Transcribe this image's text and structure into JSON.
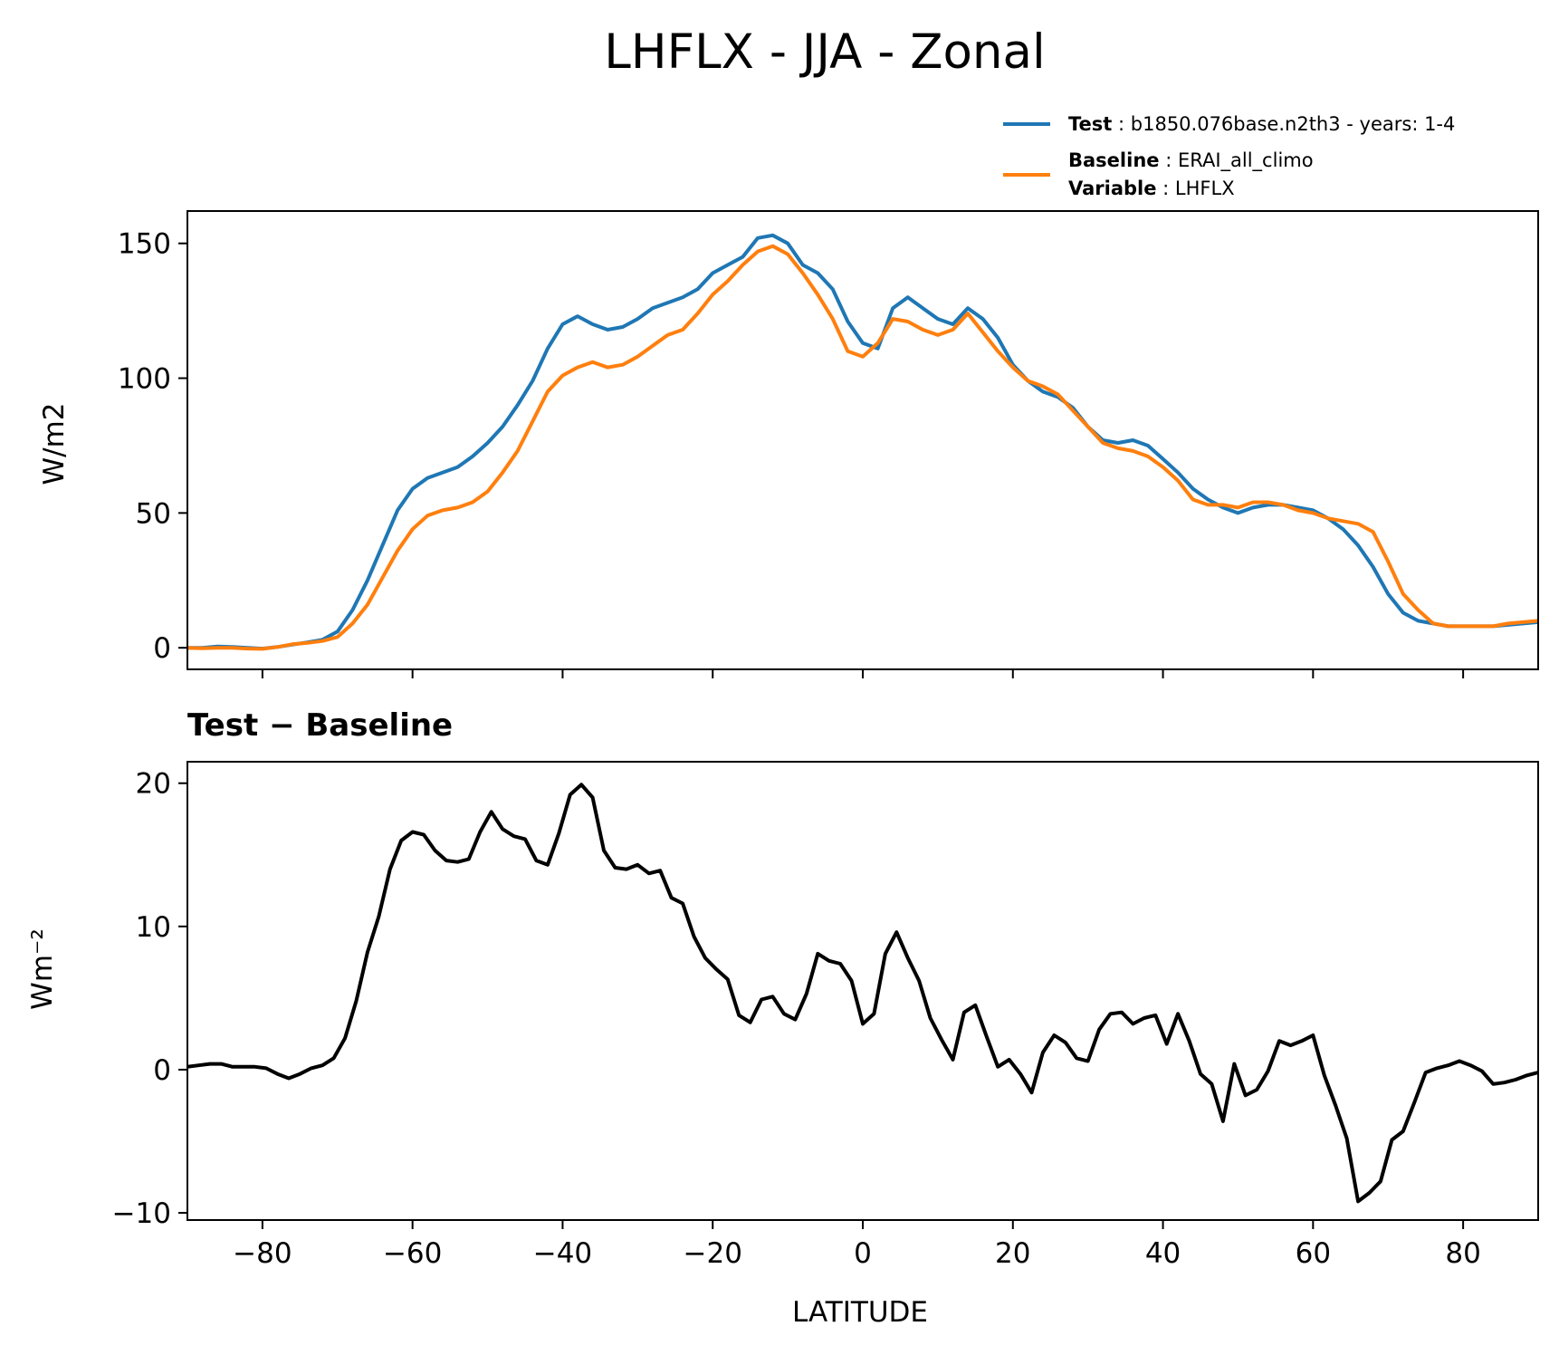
{
  "title": "LHFLX - JJA - Zonal",
  "legend": {
    "entries": [
      {
        "key": "Test",
        "sep": " : ",
        "value": "b1850.076base.n2th3 - years: 1-4",
        "color": "#1f77b4"
      },
      {
        "key": "Baseline",
        "sep": " : ",
        "value": "ERAI_all_climo",
        "color": "#ff7f0e"
      },
      {
        "key": "Variable",
        "sep": " : ",
        "value": "LHFLX"
      }
    ]
  },
  "chart_data": [
    {
      "type": "line",
      "ylabel": "W/m2",
      "xlim": [
        -90,
        90
      ],
      "ylim": [
        -8,
        162
      ],
      "yticks": [
        0,
        50,
        100,
        150
      ],
      "x": [
        -90,
        -88,
        -86,
        -84,
        -82,
        -80,
        -78,
        -76,
        -74,
        -72,
        -70,
        -68,
        -66,
        -64,
        -62,
        -60,
        -58,
        -56,
        -54,
        -52,
        -50,
        -48,
        -46,
        -44,
        -42,
        -40,
        -38,
        -36,
        -34,
        -32,
        -30,
        -28,
        -26,
        -24,
        -22,
        -20,
        -18,
        -16,
        -14,
        -12,
        -10,
        -8,
        -6,
        -4,
        -2,
        0,
        2,
        4,
        6,
        8,
        10,
        12,
        14,
        16,
        18,
        20,
        22,
        24,
        26,
        28,
        30,
        32,
        34,
        36,
        38,
        40,
        42,
        44,
        46,
        48,
        50,
        52,
        54,
        56,
        58,
        60,
        62,
        64,
        66,
        68,
        70,
        72,
        74,
        76,
        78,
        80,
        82,
        84,
        86,
        88,
        90
      ],
      "series": [
        {
          "name": "Test",
          "color": "#1f77b4",
          "values": [
            0,
            0,
            0.5,
            0.3,
            0,
            -0.3,
            0.3,
            1.2,
            2,
            3,
            6,
            14,
            25,
            38,
            51,
            59,
            63,
            65,
            67,
            71,
            76,
            82,
            90,
            99,
            111,
            120,
            123,
            120,
            118,
            119,
            122,
            126,
            128,
            130,
            133,
            139,
            142,
            145,
            152,
            153,
            150,
            142,
            139,
            133,
            121,
            113,
            111,
            126,
            130,
            126,
            122,
            120,
            126,
            122,
            115,
            105,
            99,
            95,
            93,
            89,
            82,
            77,
            76,
            77,
            75,
            70,
            65,
            59,
            55,
            52,
            50,
            52,
            53,
            53,
            52,
            51,
            48,
            44,
            38,
            30,
            20,
            13,
            10,
            9,
            8,
            8,
            8,
            8,
            8.5,
            9,
            9.5
          ]
        },
        {
          "name": "Baseline",
          "color": "#ff7f0e",
          "values": [
            0,
            -0.2,
            0,
            0,
            -0.3,
            -0.4,
            0.3,
            1.3,
            1.8,
            2.5,
            4,
            9,
            16,
            26,
            36,
            44,
            49,
            51,
            52,
            54,
            58,
            65,
            73,
            84,
            95,
            101,
            104,
            106,
            104,
            105,
            108,
            112,
            116,
            118,
            124,
            131,
            136,
            142,
            147,
            149,
            146,
            139,
            131,
            122,
            110,
            108,
            113,
            122,
            121,
            118,
            116,
            118,
            124,
            117,
            110,
            104,
            99,
            97,
            94,
            88,
            82,
            76,
            74,
            73,
            71,
            67,
            62,
            55,
            53,
            53,
            52,
            54,
            54,
            53,
            51,
            50,
            48,
            47,
            46,
            43,
            32,
            20,
            14,
            9,
            8,
            8,
            8,
            8,
            9,
            9.5,
            10
          ]
        }
      ]
    },
    {
      "type": "line",
      "title": "Test − Baseline",
      "ylabel": "Wm⁻²",
      "xlabel": "LATITUDE",
      "xlim": [
        -90,
        90
      ],
      "ylim": [
        -10.5,
        21.5
      ],
      "yticks": [
        -10,
        0,
        10,
        20
      ],
      "xticks": [
        -80,
        -60,
        -40,
        -20,
        0,
        20,
        40,
        60,
        80
      ],
      "xticklabels": [
        "−80",
        "−60",
        "−40",
        "−20",
        "0",
        "20",
        "40",
        "60",
        "80"
      ],
      "yticklabels": [
        "−10",
        "0",
        "10",
        "20"
      ],
      "series": [
        {
          "color": "#000000",
          "x": [
            -90,
            -88.5,
            -87,
            -85.5,
            -84,
            -82.5,
            -81,
            -79.5,
            -78,
            -76.5,
            -75,
            -73.5,
            -72,
            -70.5,
            -69,
            -67.5,
            -66,
            -64.5,
            -63,
            -61.5,
            -60,
            -58.5,
            -57,
            -55.5,
            -54,
            -52.5,
            -51,
            -49.5,
            -48,
            -46.5,
            -45,
            -43.5,
            -42,
            -40.5,
            -39,
            -37.5,
            -36,
            -34.5,
            -33,
            -31.5,
            -30,
            -28.5,
            -27,
            -25.5,
            -24,
            -22.5,
            -21,
            -19.5,
            -18,
            -16.5,
            -15,
            -13.5,
            -12,
            -10.5,
            -9,
            -7.5,
            -6,
            -4.5,
            -3,
            -1.5,
            0,
            1.5,
            3,
            4.5,
            6,
            7.5,
            9,
            10.5,
            12,
            13.5,
            15,
            16.5,
            18,
            19.5,
            21,
            22.5,
            24,
            25.5,
            27,
            28.5,
            30,
            31.5,
            33,
            34.5,
            36,
            37.5,
            39,
            40.5,
            42,
            43.5,
            45,
            46.5,
            48,
            49.5,
            51,
            52.5,
            54,
            55.5,
            57,
            58.5,
            60,
            61.5,
            63,
            64.5,
            66,
            67.5,
            69,
            70.5,
            72,
            73.5,
            75,
            76.5,
            78,
            79.5,
            81,
            82.5,
            84,
            85.5,
            87,
            88.5,
            90
          ],
          "values": [
            0.2,
            0.3,
            0.4,
            0.4,
            0.2,
            0.2,
            0.2,
            0.1,
            -0.3,
            -0.6,
            -0.3,
            0.1,
            0.3,
            0.8,
            2.2,
            4.8,
            8.2,
            10.7,
            14.0,
            16.0,
            16.6,
            16.4,
            15.3,
            14.6,
            14.5,
            14.7,
            16.6,
            18.0,
            16.8,
            16.3,
            16.1,
            14.6,
            14.3,
            16.5,
            19.2,
            19.9,
            19.0,
            15.3,
            14.1,
            14.0,
            14.3,
            13.7,
            13.9,
            12.0,
            11.6,
            9.3,
            7.8,
            7.0,
            6.3,
            3.8,
            3.3,
            4.9,
            5.1,
            3.9,
            3.5,
            5.3,
            8.1,
            7.6,
            7.4,
            6.2,
            3.2,
            3.9,
            8.1,
            9.6,
            7.8,
            6.2,
            3.6,
            2.1,
            0.7,
            4.0,
            4.5,
            2.3,
            0.2,
            0.7,
            -0.3,
            -1.6,
            1.2,
            2.4,
            1.9,
            0.8,
            0.6,
            2.8,
            3.9,
            4.0,
            3.2,
            3.6,
            3.8,
            1.8,
            3.9,
            2.0,
            -0.3,
            -1.0,
            -3.6,
            0.4,
            -1.8,
            -1.4,
            -0.1,
            2.0,
            1.7,
            2.0,
            2.4,
            -0.4,
            -2.5,
            -4.8,
            -9.2,
            -8.6,
            -7.8,
            -4.9,
            -4.3,
            -2.3,
            -0.2,
            0.1,
            0.3,
            0.6,
            0.3,
            -0.1,
            -1.0,
            -0.9,
            -0.7,
            -0.4,
            -0.2
          ]
        }
      ]
    }
  ]
}
